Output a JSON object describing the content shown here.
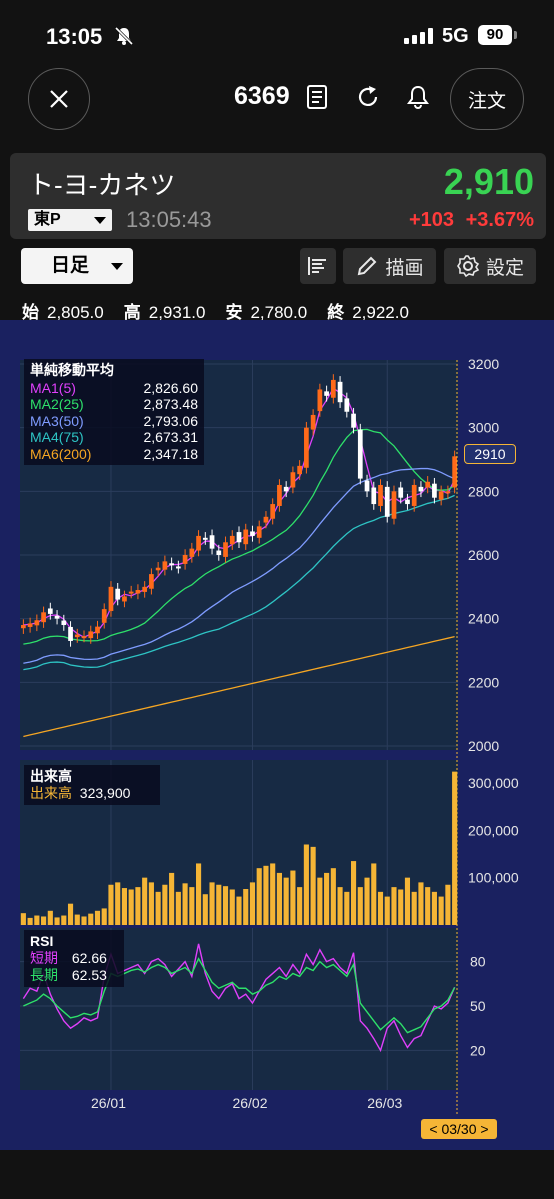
{
  "status_bar": {
    "time": "13:05",
    "network": "5G",
    "battery": "90"
  },
  "header": {
    "code": "6369",
    "order_label": "注文"
  },
  "quote": {
    "name": "ト-ヨ-カネツ",
    "price": "2,910",
    "market": "東P",
    "time": "13:05:43",
    "change": "+103",
    "change_pct": "+3.67%",
    "colors": {
      "up": "#39d353",
      "change": "#ff3b3b"
    }
  },
  "toolbar": {
    "period": "日足",
    "draw_label": "描画",
    "settings_label": "設定"
  },
  "ohlc": {
    "open_label": "始",
    "open": "2,805.0",
    "high_label": "高",
    "high": "2,931.0",
    "low_label": "安",
    "low": "2,780.0",
    "close_label": "終",
    "close": "2,922.0"
  },
  "chart_data": {
    "type": "candlestick",
    "price_axis": {
      "ticks": [
        "3200",
        "3000",
        "2800",
        "2600",
        "2400",
        "2200",
        "2000"
      ],
      "range": [
        2000,
        3200
      ]
    },
    "volume_axis": {
      "ticks": [
        "300,000",
        "200,000",
        "100,000"
      ]
    },
    "rsi_axis": {
      "ticks": [
        "80",
        "50",
        "20"
      ]
    },
    "x_ticks": [
      "26/01",
      "26/02",
      "26/03"
    ],
    "last_price_tag": "2910",
    "cursor_date": "< 03/30 >",
    "ma_legend": {
      "title": "単純移動平均",
      "items": [
        {
          "name": "MA1(5)",
          "value": "2,826.60",
          "color": "#e040fb"
        },
        {
          "name": "MA2(25)",
          "value": "2,873.48",
          "color": "#2ee06a"
        },
        {
          "name": "MA3(50)",
          "value": "2,793.06",
          "color": "#7f9cff"
        },
        {
          "name": "MA4(75)",
          "value": "2,673.31",
          "color": "#2ec4c4"
        },
        {
          "name": "MA6(200)",
          "value": "2,347.18",
          "color": "#f5a623"
        }
      ]
    },
    "volume_legend": {
      "title": "出来高",
      "name": "出来高",
      "value": "323,900",
      "color": "#f5b536"
    },
    "rsi_legend": {
      "title": "RSI",
      "items": [
        {
          "name": "短期",
          "value": "62.66",
          "color": "#e040fb"
        },
        {
          "name": "長期",
          "value": "62.53",
          "color": "#2ee06a"
        }
      ]
    },
    "candles_close": [
      2380,
      2385,
      2395,
      2420,
      2415,
      2400,
      2380,
      2330,
      2350,
      2345,
      2360,
      2375,
      2430,
      2500,
      2460,
      2470,
      2485,
      2490,
      2500,
      2540,
      2560,
      2580,
      2570,
      2560,
      2600,
      2620,
      2660,
      2650,
      2620,
      2600,
      2640,
      2660,
      2640,
      2680,
      2660,
      2690,
      2720,
      2760,
      2820,
      2800,
      2860,
      2880,
      3000,
      3040,
      3120,
      3100,
      3150,
      3080,
      3050,
      3000,
      2840,
      2800,
      2760,
      2820,
      2720,
      2800,
      2780,
      2760,
      2820,
      2800,
      2830,
      2780,
      2800,
      2800,
      2910
    ],
    "volume": [
      25000,
      15000,
      20000,
      18000,
      30000,
      16000,
      20000,
      45000,
      22000,
      18000,
      24000,
      30000,
      35000,
      85000,
      90000,
      78000,
      75000,
      80000,
      100000,
      90000,
      70000,
      85000,
      110000,
      70000,
      88000,
      80000,
      130000,
      65000,
      90000,
      85000,
      82000,
      75000,
      60000,
      76000,
      90000,
      120000,
      125000,
      130000,
      110000,
      100000,
      115000,
      80000,
      170000,
      165000,
      100000,
      110000,
      120000,
      80000,
      70000,
      135000,
      80000,
      100000,
      130000,
      70000,
      60000,
      80000,
      75000,
      100000,
      70000,
      90000,
      80000,
      70000,
      60000,
      85000,
      323900
    ],
    "rsi_short": [
      55,
      62,
      60,
      72,
      58,
      48,
      40,
      35,
      38,
      42,
      40,
      42,
      70,
      85,
      72,
      74,
      76,
      78,
      72,
      80,
      82,
      78,
      70,
      75,
      80,
      70,
      92,
      72,
      60,
      55,
      62,
      65,
      55,
      58,
      52,
      60,
      68,
      72,
      76,
      70,
      78,
      72,
      85,
      78,
      88,
      80,
      82,
      76,
      72,
      86,
      40,
      35,
      28,
      20,
      35,
      40,
      30,
      22,
      28,
      30,
      40,
      50,
      48,
      52,
      62.66
    ],
    "rsi_long": [
      50,
      52,
      54,
      58,
      55,
      50,
      46,
      42,
      43,
      45,
      44,
      46,
      60,
      72,
      70,
      72,
      74,
      75,
      73,
      76,
      78,
      76,
      72,
      74,
      76,
      72,
      82,
      74,
      66,
      62,
      64,
      66,
      62,
      62,
      58,
      60,
      64,
      66,
      70,
      68,
      72,
      70,
      76,
      74,
      80,
      76,
      78,
      74,
      70,
      78,
      52,
      46,
      40,
      34,
      38,
      42,
      38,
      32,
      34,
      36,
      42,
      48,
      50,
      54,
      62.53
    ]
  }
}
